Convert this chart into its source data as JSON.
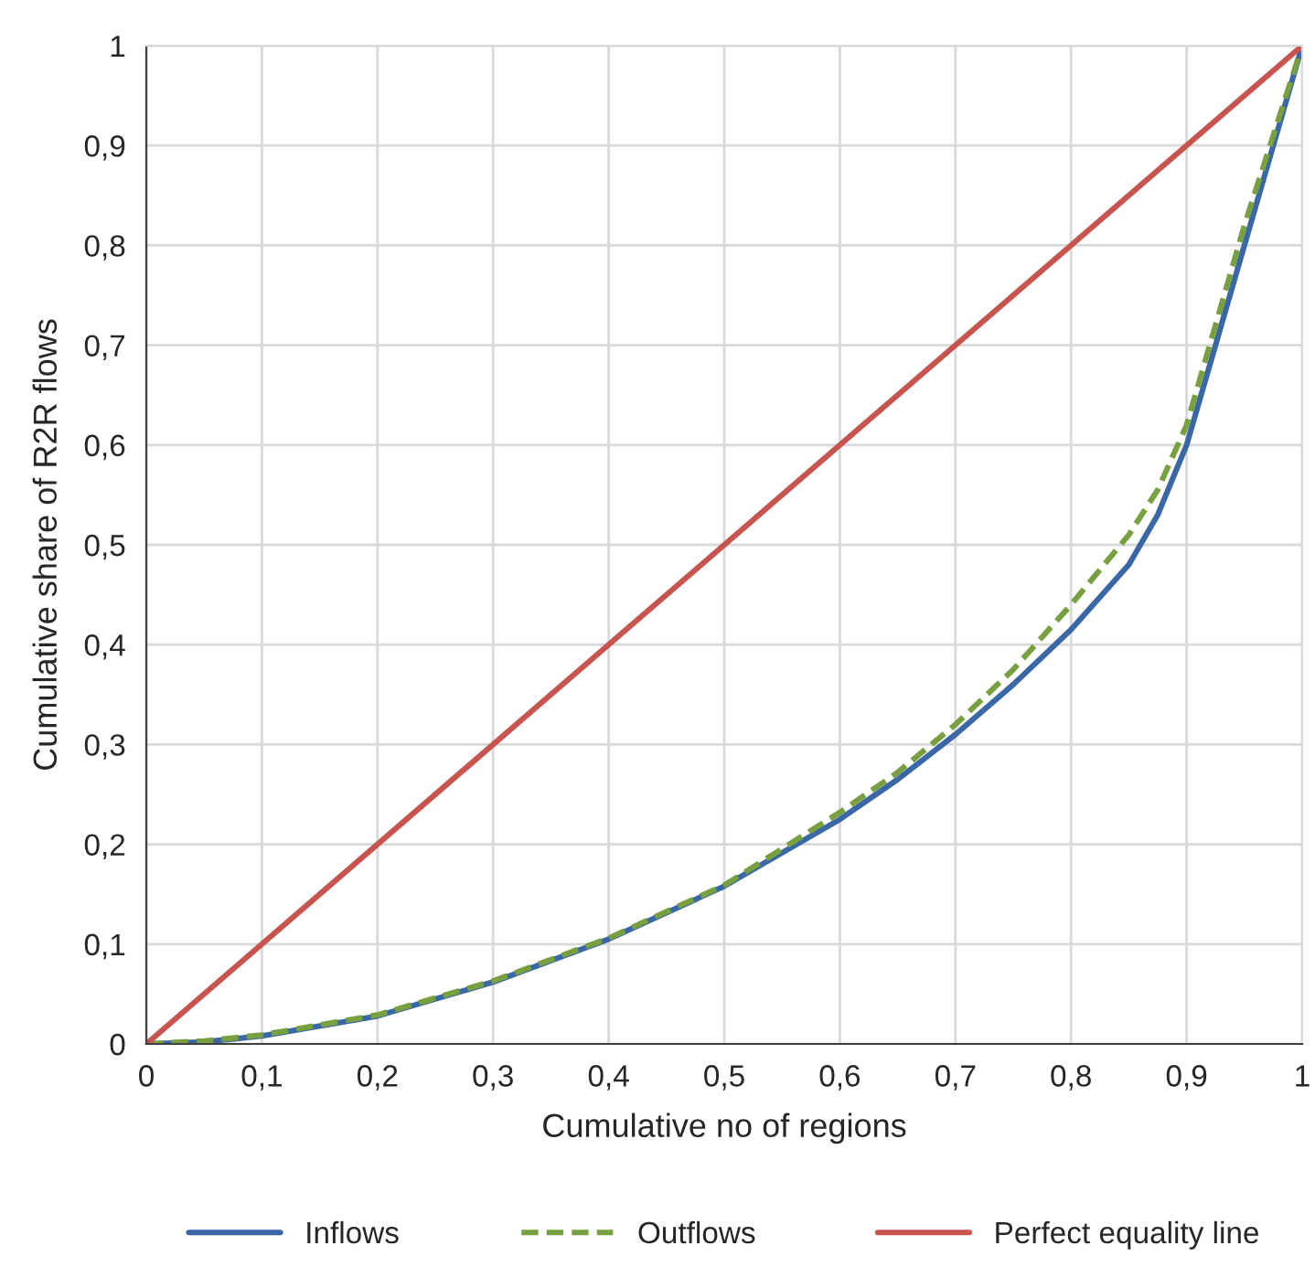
{
  "chart_data": {
    "type": "line",
    "xlabel": "Cumulative no of regions",
    "ylabel": "Cumulative share of R2R flows",
    "series": [
      {
        "name": "Inflows",
        "color": "#3a67a6",
        "line_style": "solid",
        "x": [
          0,
          0.05,
          0.1,
          0.2,
          0.3,
          0.4,
          0.5,
          0.6,
          0.65,
          0.7,
          0.75,
          0.8,
          0.85,
          0.875,
          0.9,
          0.925,
          0.95,
          0.975,
          1
        ],
        "values": [
          0,
          0.002,
          0.008,
          0.028,
          0.062,
          0.105,
          0.158,
          0.225,
          0.265,
          0.31,
          0.36,
          0.415,
          0.48,
          0.53,
          0.6,
          0.7,
          0.8,
          0.9,
          1
        ]
      },
      {
        "name": "Outflows",
        "color": "#78a040",
        "line_style": "dashed",
        "x": [
          0,
          0.05,
          0.1,
          0.2,
          0.3,
          0.4,
          0.5,
          0.6,
          0.65,
          0.7,
          0.75,
          0.8,
          0.85,
          0.875,
          0.9,
          0.925,
          0.95,
          0.975,
          1
        ],
        "values": [
          0,
          0.003,
          0.009,
          0.029,
          0.063,
          0.106,
          0.159,
          0.232,
          0.272,
          0.32,
          0.375,
          0.44,
          0.51,
          0.555,
          0.62,
          0.72,
          0.82,
          0.91,
          1
        ]
      },
      {
        "name": "Perfect equality line",
        "color": "#c85450",
        "line_style": "solid",
        "x": [
          0,
          1
        ],
        "values": [
          0,
          1
        ]
      }
    ],
    "xlim": [
      0,
      1
    ],
    "ylim": [
      0,
      1
    ],
    "xticks": [
      0,
      {
        "value": 0.1,
        "label": "0,1"
      },
      {
        "value": 0.2,
        "label": "0,2"
      },
      {
        "value": 0.3,
        "label": "0,3"
      },
      {
        "value": 0.4,
        "label": "0,4"
      },
      {
        "value": 0.5,
        "label": "0,5"
      },
      {
        "value": 0.6,
        "label": "0,6"
      },
      {
        "value": 0.7,
        "label": "0,7"
      },
      {
        "value": 0.8,
        "label": "0,8"
      },
      {
        "value": 0.9,
        "label": "0,9"
      },
      1
    ],
    "yticks": [
      0,
      {
        "value": 0.1,
        "label": "0,1"
      },
      {
        "value": 0.2,
        "label": "0,2"
      },
      {
        "value": 0.3,
        "label": "0,3"
      },
      {
        "value": 0.4,
        "label": "0,4"
      },
      {
        "value": 0.5,
        "label": "0,5"
      },
      {
        "value": 0.6,
        "label": "0,6"
      },
      {
        "value": 0.7,
        "label": "0,7"
      },
      {
        "value": 0.8,
        "label": "0,8"
      },
      {
        "value": 0.9,
        "label": "0,9"
      },
      1
    ],
    "grid": true,
    "legend": "bottom",
    "marker": "none"
  }
}
